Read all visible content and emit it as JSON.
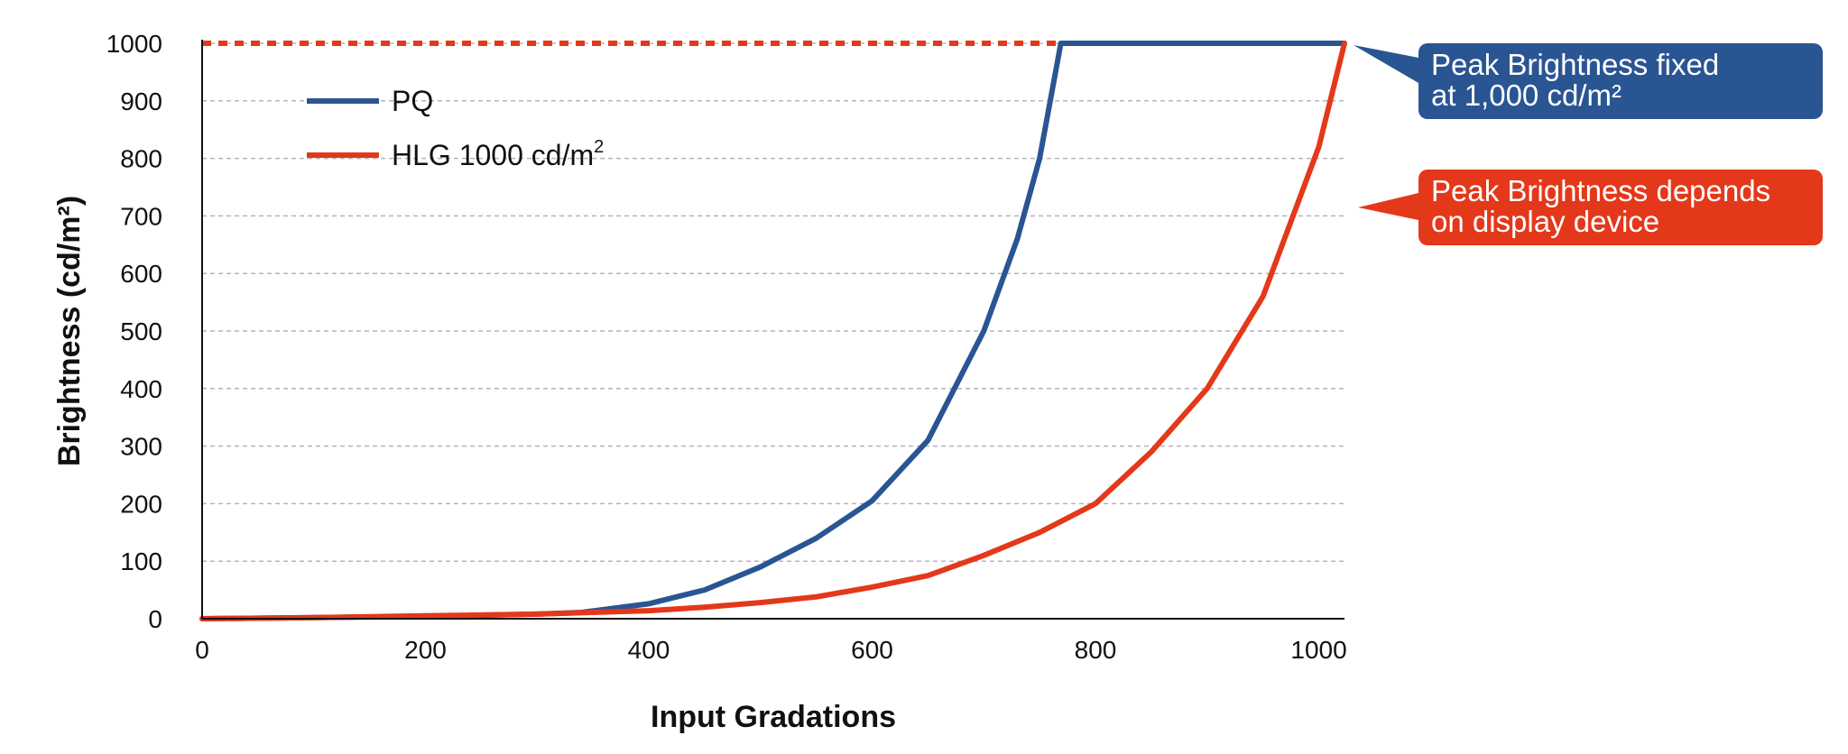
{
  "chart_data": {
    "type": "line",
    "xlabel": "Input Gradations",
    "ylabel": "Brightness (cd/m²)",
    "xlim": [
      0,
      1023
    ],
    "ylim": [
      0,
      1000
    ],
    "xticks": [
      0,
      200,
      400,
      600,
      800,
      1000
    ],
    "yticks": [
      0,
      100,
      200,
      300,
      400,
      500,
      600,
      700,
      800,
      900,
      1000
    ],
    "grid": "horizontal dashed",
    "legend_position": "top-left",
    "series": [
      {
        "name": "PQ",
        "color": "#2a5593",
        "x": [
          0,
          100,
          200,
          300,
          340,
          400,
          450,
          500,
          550,
          600,
          650,
          700,
          730,
          750,
          769,
          800,
          900,
          1023
        ],
        "y": [
          0,
          2,
          4,
          8,
          11,
          26,
          50,
          90,
          140,
          205,
          310,
          500,
          660,
          800,
          1000,
          1000,
          1000,
          1000
        ]
      },
      {
        "name": "HLG 1000 cd/m",
        "name_superscript": "2",
        "color": "#e4381a",
        "x": [
          0,
          100,
          200,
          300,
          400,
          450,
          500,
          550,
          600,
          650,
          700,
          750,
          800,
          850,
          900,
          950,
          1000,
          1023
        ],
        "y": [
          0,
          2,
          5,
          8,
          14,
          20,
          28,
          38,
          55,
          75,
          110,
          150,
          200,
          290,
          400,
          560,
          820,
          1000
        ]
      }
    ],
    "reference_line": {
      "y": 1000,
      "style": "dashed",
      "color": "#e4381a"
    },
    "annotations": [
      {
        "lines": [
          "Peak Brightness fixed",
          "at 1,000 cd/m²"
        ],
        "color": "#2a5593",
        "points_to_y": 1000
      },
      {
        "lines": [
          "Peak Brightness depends",
          "on display device"
        ],
        "color": "#e4381a",
        "points_to_y": 700
      }
    ]
  }
}
